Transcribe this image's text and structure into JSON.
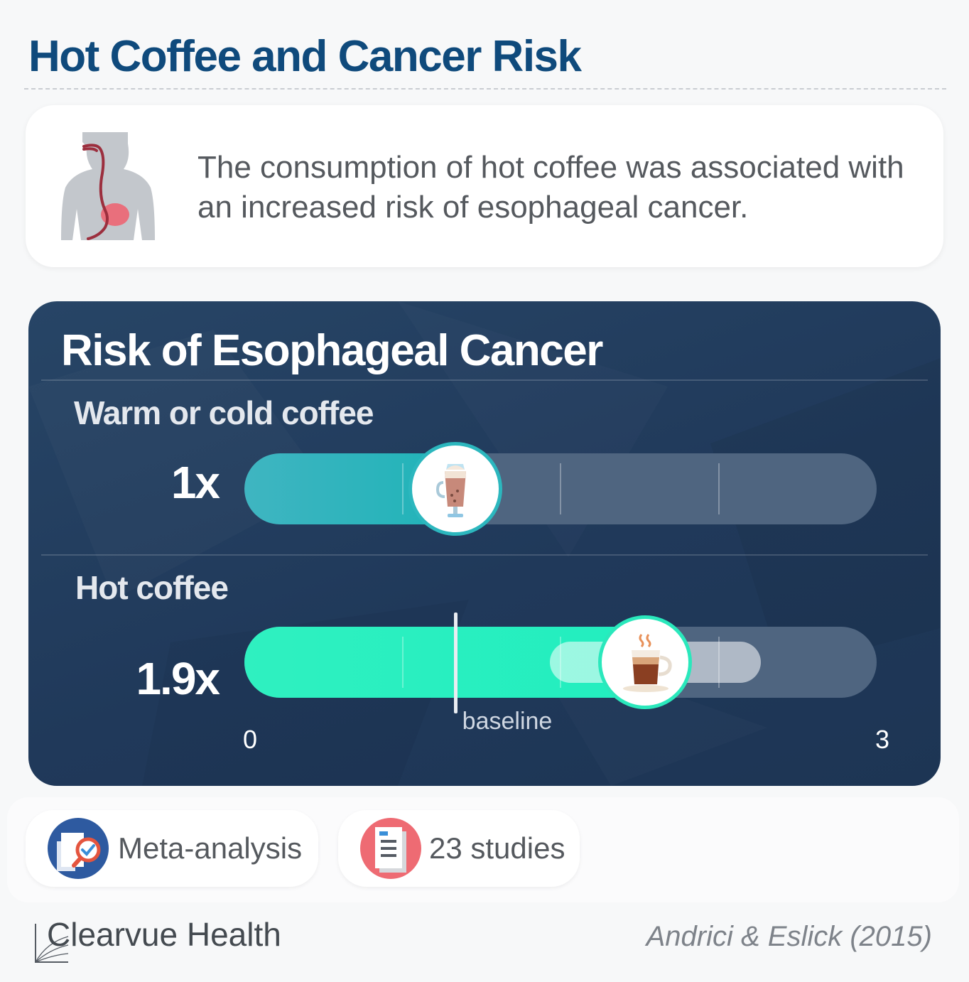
{
  "title": "Hot Coffee and Cancer Risk",
  "summary": "The consumption of hot coffee was associated with an increased risk of esophageal cancer.",
  "chart_data": {
    "type": "bar",
    "title": "Risk of Esophageal Cancer",
    "unit_suffix": "x",
    "xlim": [
      0,
      3
    ],
    "ticks": [
      0.75,
      1.5,
      2.25
    ],
    "baseline": 1,
    "baseline_label": "baseline",
    "axis_labels": [
      "0",
      "3"
    ],
    "categories": [
      "Warm or cold coffee",
      "Hot coffee"
    ],
    "values": [
      1,
      1.9
    ],
    "value_labels": [
      "1x",
      "1.9x"
    ],
    "ci": [
      null,
      [
        1.45,
        2.45
      ]
    ]
  },
  "colors": {
    "title": "#0f4a7c",
    "warm_fill": "#2cb7be",
    "hot_fill": "#2ff0c0",
    "panel_bg": "#223c5d"
  },
  "icons": {
    "summary": "esophagus-torso-icon",
    "warm_marker": "iced-coffee-icon",
    "hot_marker": "hot-coffee-cup-icon",
    "meta": "magnifier-document-icon",
    "studies": "document-list-icon",
    "brand": "clearvue-logo-icon"
  },
  "badges": {
    "method": "Meta-analysis",
    "studies": "23 studies"
  },
  "footer": {
    "brand": "Clearvue Health",
    "citation": "Andrici & Eslick (2015)"
  }
}
